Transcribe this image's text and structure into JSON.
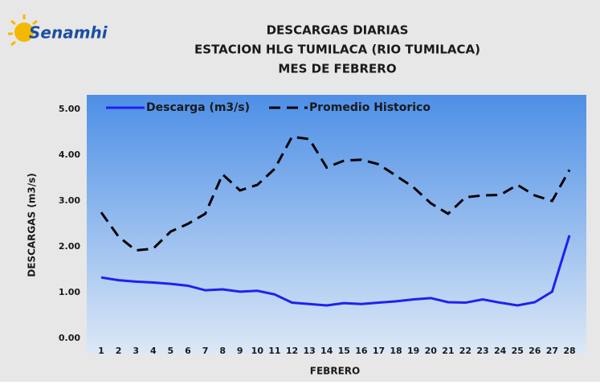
{
  "logo": "Senamhi",
  "chart_data": {
    "type": "line",
    "title": [
      "DESCARGAS DIARIAS",
      "ESTACION HLG  TUMILACA (RIO  TUMILACA)",
      "MES DE FEBRERO"
    ],
    "xlabel": "FEBRERO",
    "ylabel": "DESCARGAS (m3/s)",
    "categories": [
      "1",
      "2",
      "3",
      "4",
      "5",
      "6",
      "7",
      "8",
      "9",
      "10",
      "11",
      "12",
      "13",
      "14",
      "15",
      "16",
      "17",
      "18",
      "19",
      "20",
      "21",
      "22",
      "23",
      "24",
      "25",
      "26",
      "27",
      "28"
    ],
    "series": [
      {
        "name": "Descarga (m3/s)",
        "color": "#2020f0",
        "dash": false,
        "values": [
          1.33,
          1.27,
          1.24,
          1.22,
          1.19,
          1.15,
          1.05,
          1.07,
          1.02,
          1.04,
          0.96,
          0.78,
          0.75,
          0.72,
          0.77,
          0.75,
          0.78,
          0.81,
          0.85,
          0.88,
          0.79,
          0.78,
          0.85,
          0.78,
          0.72,
          0.79,
          1.02,
          2.25
        ]
      },
      {
        "name": "Promedio Historico",
        "color": "#000000",
        "dash": true,
        "values": [
          2.75,
          2.22,
          1.92,
          1.96,
          2.33,
          2.5,
          2.72,
          3.58,
          3.23,
          3.35,
          3.7,
          4.4,
          4.35,
          3.73,
          3.88,
          3.9,
          3.8,
          3.55,
          3.3,
          2.95,
          2.72,
          3.08,
          3.12,
          3.13,
          3.35,
          3.12,
          3.0,
          3.68
        ]
      }
    ],
    "ylim": [
      0,
      5
    ],
    "yticks": [
      {
        "value": 0,
        "label": "0.00"
      },
      {
        "value": 1,
        "label": "1.00"
      },
      {
        "value": 2,
        "label": "2.00"
      },
      {
        "value": 3,
        "label": "3.00"
      },
      {
        "value": 4,
        "label": "4.00"
      },
      {
        "value": 5,
        "label": "5.00"
      }
    ],
    "grid": false,
    "legend": "top-left"
  }
}
